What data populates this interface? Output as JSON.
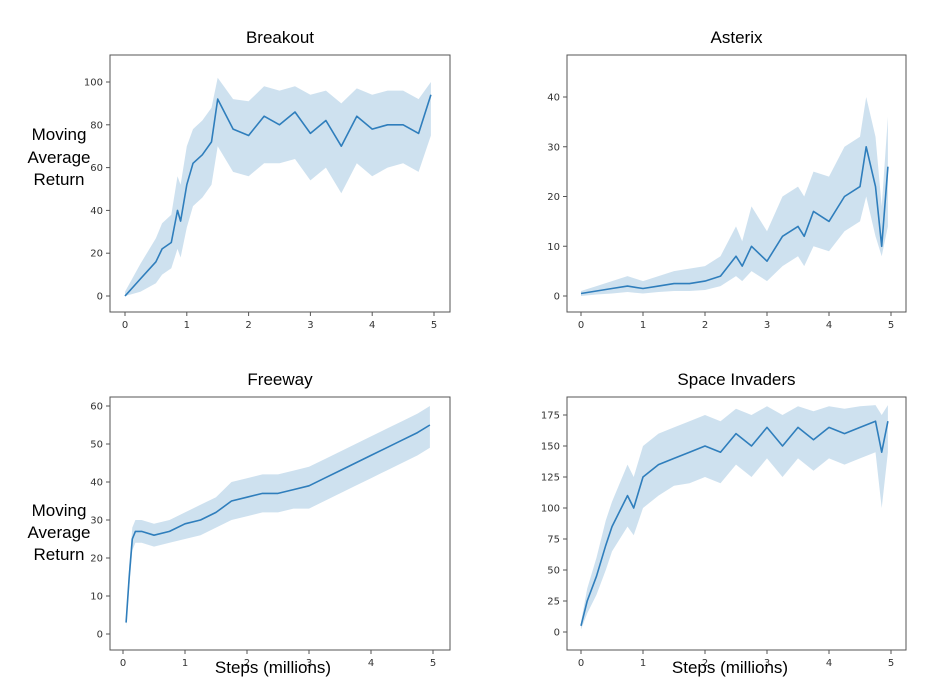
{
  "figure": {
    "ylabel_lines": [
      "Moving",
      "Average",
      "Return"
    ],
    "xlabel": "Steps (millions)"
  },
  "chart_data": [
    {
      "type": "line",
      "title": "Breakout",
      "xlim": [
        0,
        5
      ],
      "ylim": [
        0,
        100
      ],
      "xticks": [
        0,
        1,
        2,
        3,
        4,
        5
      ],
      "yticks": [
        0,
        20,
        40,
        60,
        80,
        100
      ],
      "grid": false,
      "x": [
        0,
        0.25,
        0.5,
        0.6,
        0.75,
        0.85,
        0.9,
        1.0,
        1.1,
        1.25,
        1.4,
        1.5,
        1.75,
        2.0,
        2.25,
        2.5,
        2.75,
        3.0,
        3.25,
        3.5,
        3.75,
        4.0,
        4.25,
        4.5,
        4.75,
        4.95
      ],
      "mean": [
        0,
        8,
        16,
        22,
        25,
        40,
        35,
        52,
        62,
        66,
        72,
        92,
        78,
        75,
        84,
        80,
        86,
        76,
        82,
        70,
        84,
        78,
        80,
        80,
        76,
        94
      ],
      "lower": [
        0,
        2,
        6,
        10,
        13,
        22,
        18,
        32,
        42,
        46,
        52,
        70,
        58,
        56,
        62,
        62,
        64,
        54,
        60,
        48,
        62,
        56,
        60,
        62,
        58,
        75
      ],
      "upper": [
        2,
        15,
        27,
        34,
        38,
        56,
        52,
        70,
        78,
        82,
        88,
        102,
        92,
        91,
        98,
        96,
        98,
        94,
        96,
        90,
        97,
        94,
        96,
        96,
        92,
        100
      ]
    },
    {
      "type": "line",
      "title": "Asterix",
      "xlim": [
        0,
        5
      ],
      "ylim": [
        0,
        40
      ],
      "xticks": [
        0,
        1,
        2,
        3,
        4,
        5
      ],
      "yticks": [
        0,
        10,
        20,
        30,
        40
      ],
      "grid": false,
      "x": [
        0,
        0.25,
        0.5,
        0.75,
        1.0,
        1.25,
        1.5,
        1.75,
        2.0,
        2.25,
        2.5,
        2.6,
        2.75,
        3.0,
        3.25,
        3.5,
        3.6,
        3.75,
        4.0,
        4.25,
        4.5,
        4.6,
        4.75,
        4.85,
        4.95
      ],
      "mean": [
        0.5,
        1,
        1.5,
        2,
        1.5,
        2,
        2.5,
        2.5,
        3,
        4,
        8,
        6,
        10,
        7,
        12,
        14,
        12,
        17,
        15,
        20,
        22,
        30,
        22,
        10,
        26
      ],
      "lower": [
        0,
        0.3,
        0.5,
        0.8,
        0.5,
        0.8,
        1,
        1,
        1.2,
        2,
        4,
        3,
        5,
        3,
        6,
        8,
        6,
        10,
        9,
        13,
        15,
        20,
        12,
        8,
        14
      ],
      "upper": [
        1,
        2,
        3,
        4,
        3,
        4,
        5,
        5.5,
        6,
        8,
        14,
        11,
        18,
        13,
        20,
        22,
        20,
        25,
        24,
        30,
        32,
        40,
        32,
        18,
        36
      ]
    },
    {
      "type": "line",
      "title": "Freeway",
      "xlim": [
        0,
        5
      ],
      "ylim": [
        0,
        60
      ],
      "xticks": [
        0,
        1,
        2,
        3,
        4,
        5
      ],
      "yticks": [
        0,
        10,
        20,
        30,
        40,
        50,
        60
      ],
      "grid": false,
      "x": [
        0.05,
        0.1,
        0.15,
        0.2,
        0.3,
        0.5,
        0.75,
        1.0,
        1.25,
        1.5,
        1.75,
        2.0,
        2.25,
        2.5,
        2.75,
        3.0,
        3.25,
        3.5,
        3.75,
        4.0,
        4.25,
        4.5,
        4.75,
        4.95
      ],
      "mean": [
        3,
        15,
        25,
        27,
        27,
        26,
        27,
        29,
        30,
        32,
        35,
        36,
        37,
        37,
        38,
        39,
        41,
        43,
        45,
        47,
        49,
        51,
        53,
        55
      ],
      "lower": [
        2,
        12,
        22,
        24,
        24,
        23,
        24,
        25,
        26,
        28,
        30,
        31,
        32,
        32,
        33,
        33,
        35,
        37,
        39,
        41,
        43,
        45,
        47,
        49
      ],
      "upper": [
        4,
        18,
        28,
        30,
        30,
        29,
        30,
        32,
        34,
        36,
        40,
        41,
        42,
        42,
        43,
        44,
        46,
        48,
        50,
        52,
        54,
        56,
        58,
        60
      ]
    },
    {
      "type": "line",
      "title": "Space Invaders",
      "xlim": [
        0,
        5
      ],
      "ylim": [
        0,
        175
      ],
      "xticks": [
        0,
        1,
        2,
        3,
        4,
        5
      ],
      "yticks": [
        0,
        25,
        50,
        75,
        100,
        125,
        150,
        175
      ],
      "grid": false,
      "x": [
        0,
        0.1,
        0.25,
        0.4,
        0.5,
        0.75,
        0.85,
        1.0,
        1.25,
        1.5,
        1.75,
        2.0,
        2.25,
        2.5,
        2.75,
        3.0,
        3.25,
        3.5,
        3.75,
        4.0,
        4.25,
        4.5,
        4.75,
        4.85,
        4.95
      ],
      "mean": [
        5,
        25,
        45,
        70,
        85,
        110,
        100,
        125,
        135,
        140,
        145,
        150,
        145,
        160,
        150,
        165,
        150,
        165,
        155,
        165,
        160,
        165,
        170,
        145,
        170
      ],
      "lower": [
        2,
        15,
        30,
        50,
        65,
        85,
        78,
        100,
        110,
        118,
        120,
        125,
        120,
        135,
        125,
        140,
        125,
        140,
        130,
        140,
        135,
        140,
        145,
        100,
        145
      ],
      "upper": [
        8,
        35,
        60,
        90,
        105,
        135,
        125,
        150,
        160,
        165,
        170,
        175,
        170,
        180,
        175,
        182,
        175,
        182,
        178,
        182,
        180,
        182,
        183,
        175,
        183
      ]
    }
  ]
}
